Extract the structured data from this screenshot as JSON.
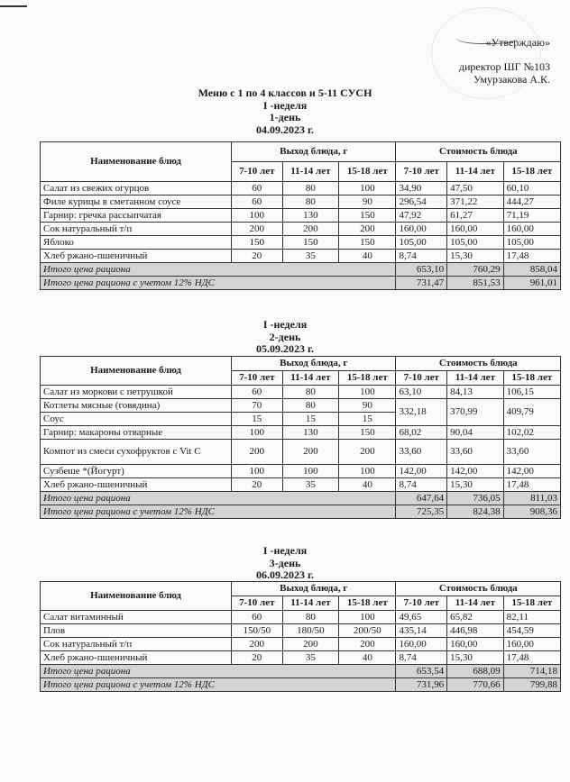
{
  "approval": {
    "line1": "«Утверждаю»",
    "line2": "директор ШГ №103",
    "line3": "Умурзакова А.К."
  },
  "title": "Меню с 1 по 4 классов и 5-11 СУСН",
  "headers": {
    "name": "Наименование блюд",
    "yield": "Выход блюда, г",
    "cost": "Стоимость блюда",
    "ages": [
      "7-10 лет",
      "11-14 лет",
      "15-18 лет"
    ]
  },
  "days": [
    {
      "week": "I -неделя",
      "day": "1-день",
      "date": "04.09.2023 г.",
      "rows": [
        {
          "name": "Салат из свежих огурцов",
          "yield": [
            "60",
            "80",
            "100"
          ],
          "cost": [
            "34,90",
            "47,50",
            "60,10"
          ]
        },
        {
          "name": "Филе курицы в сметанном соусе",
          "yield": [
            "60",
            "80",
            "90"
          ],
          "cost": [
            "296,54",
            "371,22",
            "444,27"
          ]
        },
        {
          "name": "Гарнир: гречка рассыпчатая",
          "yield": [
            "100",
            "130",
            "150"
          ],
          "cost": [
            "47,92",
            "61,27",
            "71,19"
          ]
        },
        {
          "name": "Сок натуральный т/п",
          "yield": [
            "200",
            "200",
            "200"
          ],
          "cost": [
            "160,00",
            "160,00",
            "160,00"
          ]
        },
        {
          "name": "Яблоко",
          "yield": [
            "150",
            "150",
            "150"
          ],
          "cost": [
            "105,00",
            "105,00",
            "105,00"
          ]
        },
        {
          "name": "Хлеб ржано-пшеничный",
          "yield": [
            "20",
            "35",
            "40"
          ],
          "cost": [
            "8,74",
            "15,30",
            "17,48"
          ]
        }
      ],
      "totals": [
        {
          "label": "Итого цена рациона",
          "values": [
            "653,10",
            "760,29",
            "858,04"
          ]
        },
        {
          "label": "Итого цена рациона с учетом 12% НДС",
          "values": [
            "731,47",
            "851,53",
            "961,01"
          ]
        }
      ]
    },
    {
      "week": "I -неделя",
      "day": "2-день",
      "date": "05.09.2023 г.",
      "rows": [
        {
          "name": "Салат из моркови с петрушкой",
          "yield": [
            "60",
            "80",
            "100"
          ],
          "cost": [
            "63,10",
            "84,13",
            "106,15"
          ]
        },
        {
          "name": "Котлеты мясные (говядина)",
          "yield": [
            "70",
            "80",
            "90"
          ],
          "cost": [
            "332,18",
            "370,99",
            "409,79"
          ],
          "cost_shared_with_next": true
        },
        {
          "name": "Соус",
          "yield": [
            "15",
            "15",
            "15"
          ],
          "cost": null
        },
        {
          "name": "Гарнир: макароны отварные",
          "yield": [
            "100",
            "130",
            "150"
          ],
          "cost": [
            "68,02",
            "90,04",
            "102,02"
          ]
        },
        {
          "name": "Компот из смеси сухофруктов с Vit C",
          "yield": [
            "200",
            "200",
            "200"
          ],
          "cost": [
            "33,60",
            "33,60",
            "33,60"
          ]
        },
        {
          "name": "Сузбеше *(Йогурт)",
          "yield": [
            "100",
            "100",
            "100"
          ],
          "cost": [
            "142,00",
            "142,00",
            "142,00"
          ]
        },
        {
          "name": "Хлеб ржано-пшеничный",
          "yield": [
            "20",
            "35",
            "40"
          ],
          "cost": [
            "8,74",
            "15,30",
            "17,48"
          ]
        }
      ],
      "totals": [
        {
          "label": "Итого цена рациона",
          "values": [
            "647,64",
            "736,05",
            "811,03"
          ]
        },
        {
          "label": "Итого цена рациона с учетом 12% НДС",
          "values": [
            "725,35",
            "824,38",
            "908,36"
          ]
        }
      ]
    },
    {
      "week": "I -неделя",
      "day": "3-день",
      "date": "06.09.2023 г.",
      "rows": [
        {
          "name": "Салат витаминный",
          "yield": [
            "60",
            "80",
            "100"
          ],
          "cost": [
            "49,65",
            "65,82",
            "82,11"
          ]
        },
        {
          "name": "Плов",
          "yield": [
            "150/50",
            "180/50",
            "200/50"
          ],
          "cost": [
            "435,14",
            "446,98",
            "454,59"
          ]
        },
        {
          "name": "Сок натуральный т/п",
          "yield": [
            "200",
            "200",
            "200"
          ],
          "cost": [
            "160,00",
            "160,00",
            "160,00"
          ]
        },
        {
          "name": "Хлеб ржано-пшеничный",
          "yield": [
            "20",
            "35",
            "40"
          ],
          "cost": [
            "8,74",
            "15,30",
            "17,48"
          ]
        }
      ],
      "totals": [
        {
          "label": "Итого цена рациона",
          "values": [
            "653,54",
            "688,09",
            "714,18"
          ]
        },
        {
          "label": "Итого цена рациона с учетом 12% НДС",
          "values": [
            "731,96",
            "770,66",
            "799,88"
          ]
        }
      ]
    }
  ]
}
